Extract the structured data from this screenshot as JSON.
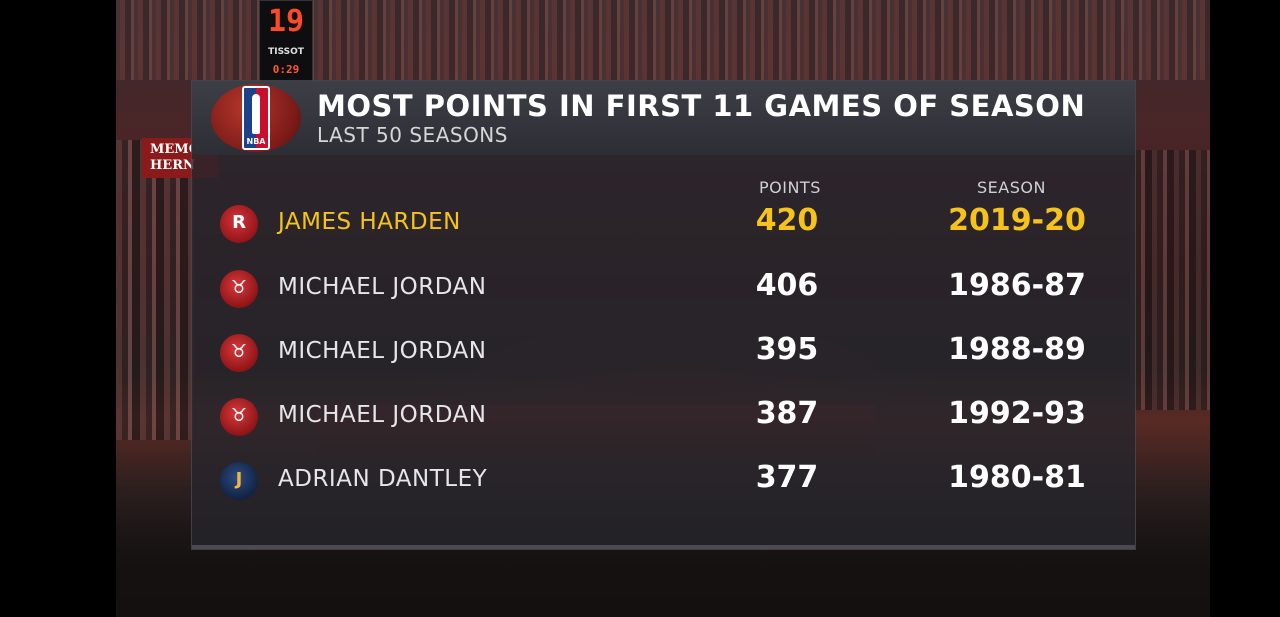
{
  "shot_clock": {
    "big": "19",
    "brand": "TISSOT",
    "small": "0:29"
  },
  "arena_sign": "MEMO HERN",
  "graphic": {
    "title": "MOST POINTS IN FIRST 11 GAMES OF SEASON",
    "subtitle": "LAST 50 SEASONS",
    "headers": {
      "points": "POINTS",
      "season": "SEASON"
    },
    "rows": [
      {
        "team_icon": "rockets-logo-icon",
        "player": "JAMES HARDEN",
        "points": "420",
        "season": "2019-20",
        "highlight": true
      },
      {
        "team_icon": "bulls-logo-icon",
        "player": "MICHAEL JORDAN",
        "points": "406",
        "season": "1986-87"
      },
      {
        "team_icon": "bulls-logo-icon",
        "player": "MICHAEL JORDAN",
        "points": "395",
        "season": "1988-89"
      },
      {
        "team_icon": "bulls-logo-icon",
        "player": "MICHAEL JORDAN",
        "points": "387",
        "season": "1992-93"
      },
      {
        "team_icon": "jazz-logo-icon",
        "player": "ADRIAN DANTLEY",
        "points": "377",
        "season": "1980-81"
      }
    ]
  },
  "colors": {
    "highlight": "#f6c31c",
    "panel": "#26262c",
    "rockets": "#ce1141",
    "bulls": "#ce1141",
    "jazz": "#002b5c"
  }
}
